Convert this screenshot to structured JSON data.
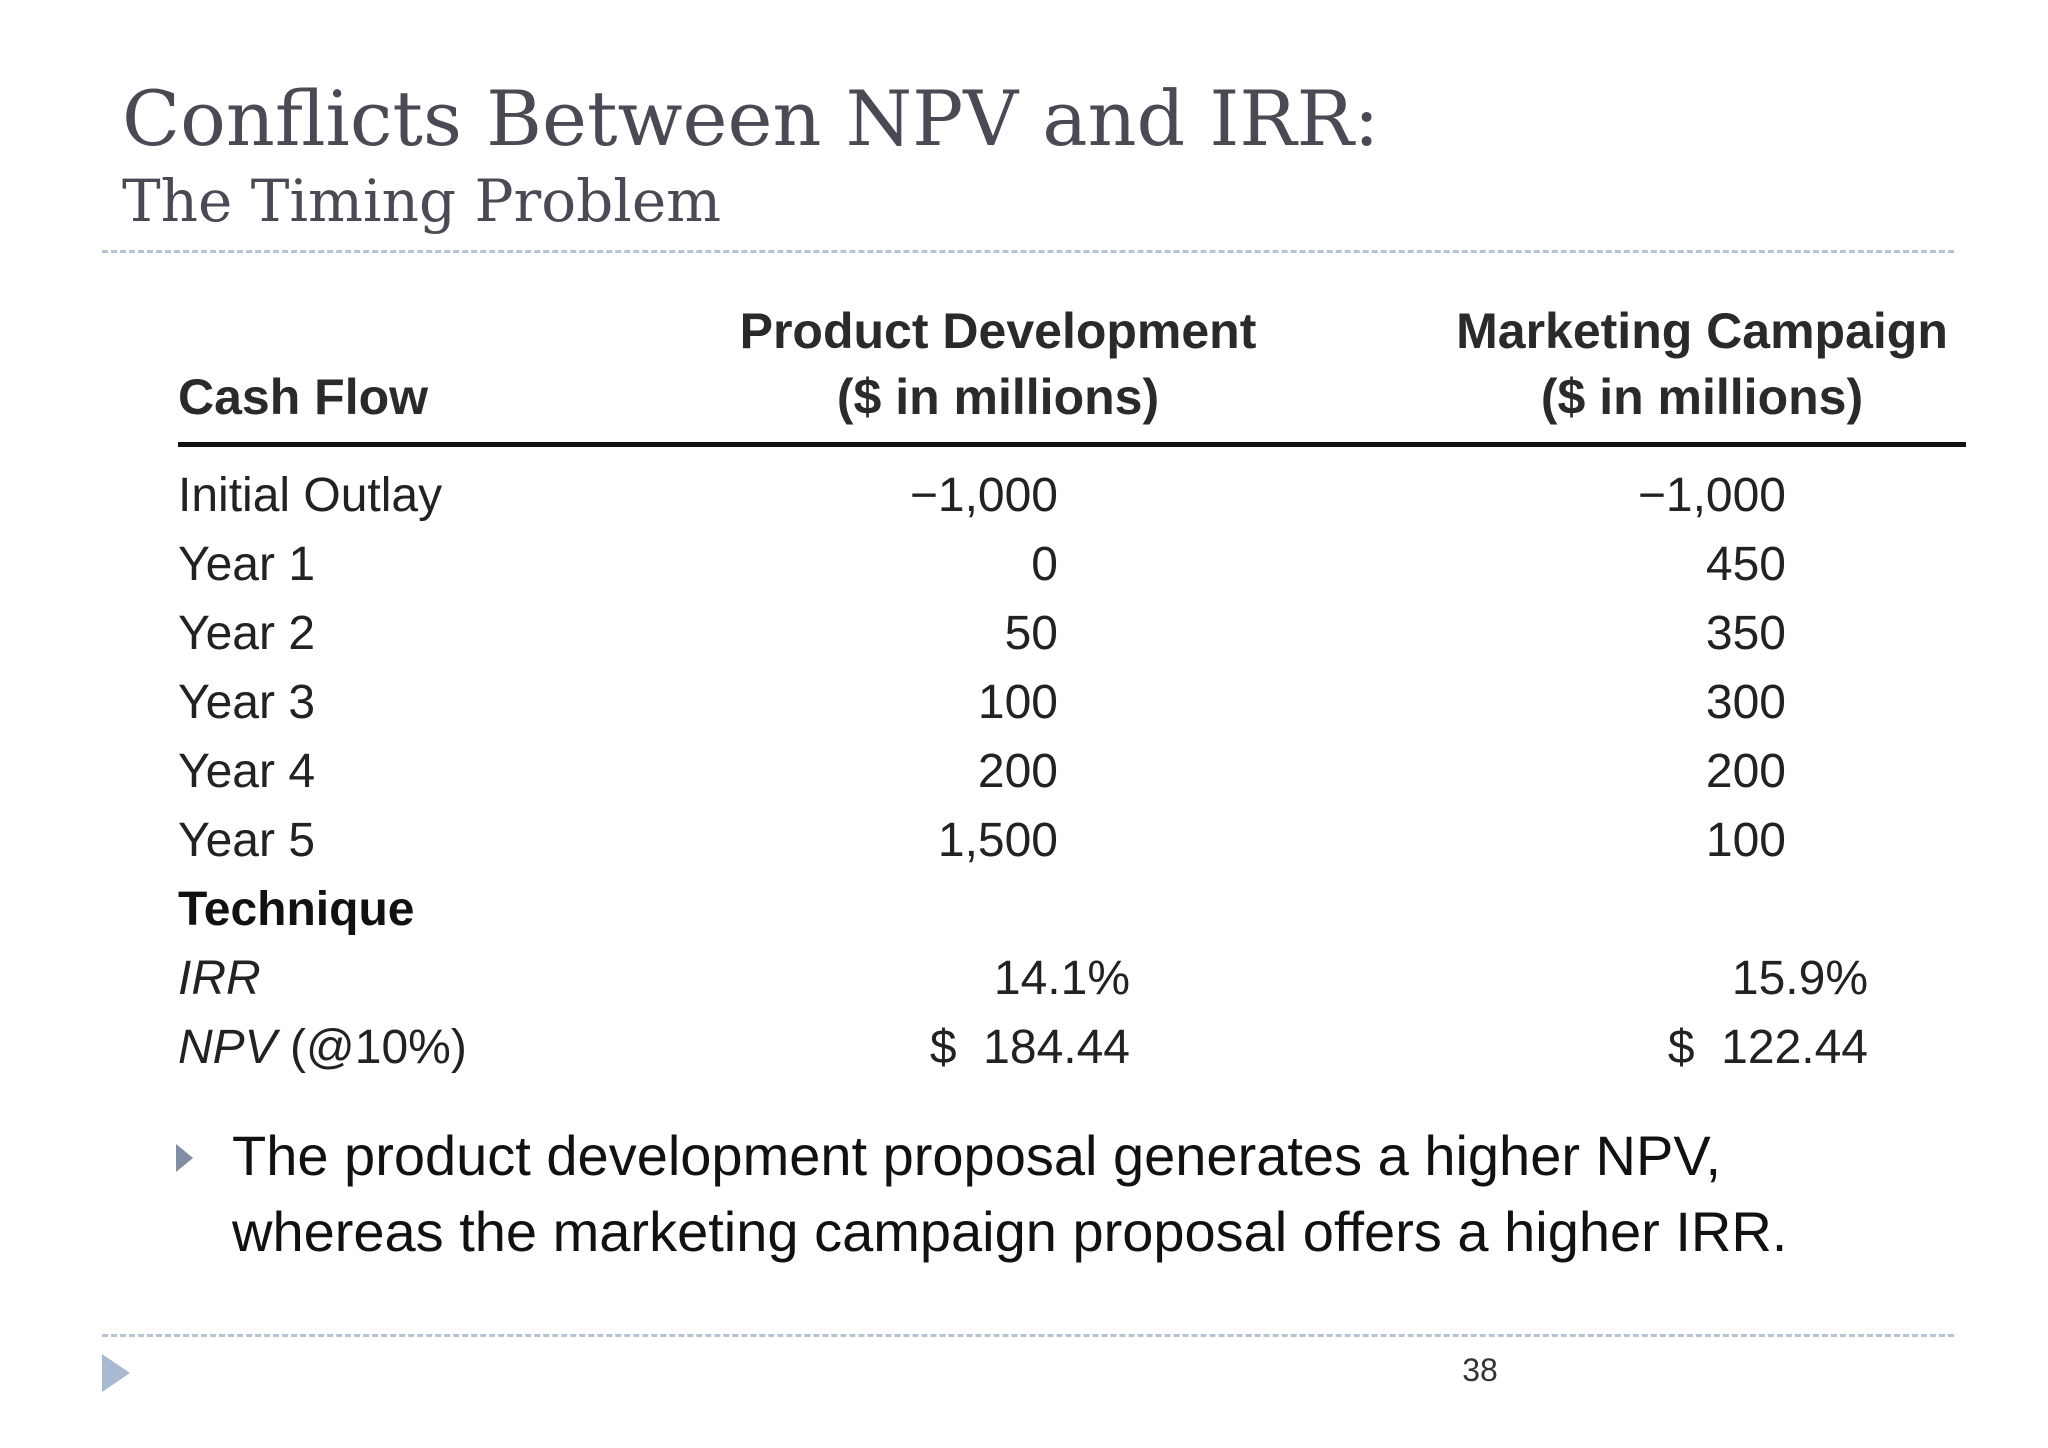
{
  "slide": {
    "title": "Conflicts Between NPV and IRR:",
    "subtitle": "The Timing Problem"
  },
  "table": {
    "headers": {
      "label": "Cash Flow",
      "product_line1": "Product Development",
      "product_line2": "($ in millions)",
      "marketing_line1": "Marketing Campaign",
      "marketing_line2": "($ in millions)"
    },
    "rows": [
      {
        "label": "Initial Outlay",
        "product": "−1,000",
        "marketing": "−1,000"
      },
      {
        "label": "Year 1",
        "product": "0",
        "marketing": "450"
      },
      {
        "label": "Year 2",
        "product": "50",
        "marketing": "350"
      },
      {
        "label": "Year 3",
        "product": "100",
        "marketing": "300"
      },
      {
        "label": "Year 4",
        "product": "200",
        "marketing": "200"
      },
      {
        "label": "Year 5",
        "product": "1,500",
        "marketing": "100"
      }
    ],
    "section_label": "Technique",
    "irr": {
      "label": "IRR",
      "product": "14.1%",
      "marketing": "15.9%"
    },
    "npv": {
      "label_italic": "NPV",
      "label_rest": " (@10%)",
      "product": "$  184.44",
      "marketing": "$  122.44"
    }
  },
  "bullet": {
    "text": "The product development proposal generates a higher NPV, whereas the marketing campaign proposal offers a higher IRR."
  },
  "footer": {
    "page_number": "38"
  },
  "icons": {
    "bullet": "triangle-bullet-icon",
    "corner": "triangle-corner-icon"
  }
}
